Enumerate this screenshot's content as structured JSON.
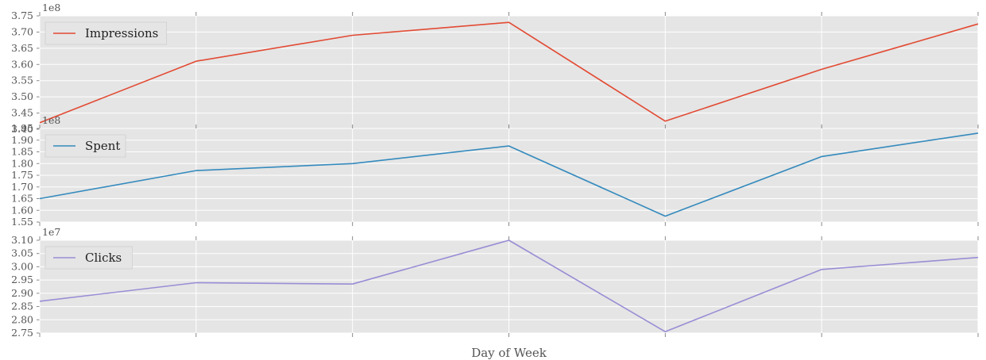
{
  "chart_data": {
    "type": "line",
    "xlabel": "Day of Week",
    "grid": true,
    "legend_placement": "upper-left",
    "x_ticks": 7,
    "background": "#e5e5e5",
    "panels": [
      {
        "name": "Impressions",
        "offset_label": "1e8",
        "color": "#e24a33",
        "ylim": [
          3.4,
          3.75
        ],
        "yticks": [
          "3.40",
          "3.45",
          "3.50",
          "3.55",
          "3.60",
          "3.65",
          "3.70",
          "3.75"
        ],
        "values": [
          3.42,
          3.61,
          3.69,
          3.73,
          3.425,
          3.585,
          3.725
        ]
      },
      {
        "name": "Spent",
        "offset_label": "1e8",
        "color": "#348abd",
        "ylim": [
          1.55,
          1.95
        ],
        "yticks": [
          "1.55",
          "1.60",
          "1.65",
          "1.70",
          "1.75",
          "1.80",
          "1.85",
          "1.90",
          "1.95"
        ],
        "values": [
          1.65,
          1.77,
          1.8,
          1.875,
          1.575,
          1.83,
          1.93
        ]
      },
      {
        "name": "Clicks",
        "offset_label": "1e7",
        "color": "#988ed5",
        "ylim": [
          2.75,
          3.1
        ],
        "yticks": [
          "2.75",
          "2.80",
          "2.85",
          "2.90",
          "2.95",
          "3.00",
          "3.05",
          "3.10"
        ],
        "values": [
          2.87,
          2.94,
          2.935,
          3.1,
          2.755,
          2.99,
          3.035
        ]
      }
    ]
  }
}
